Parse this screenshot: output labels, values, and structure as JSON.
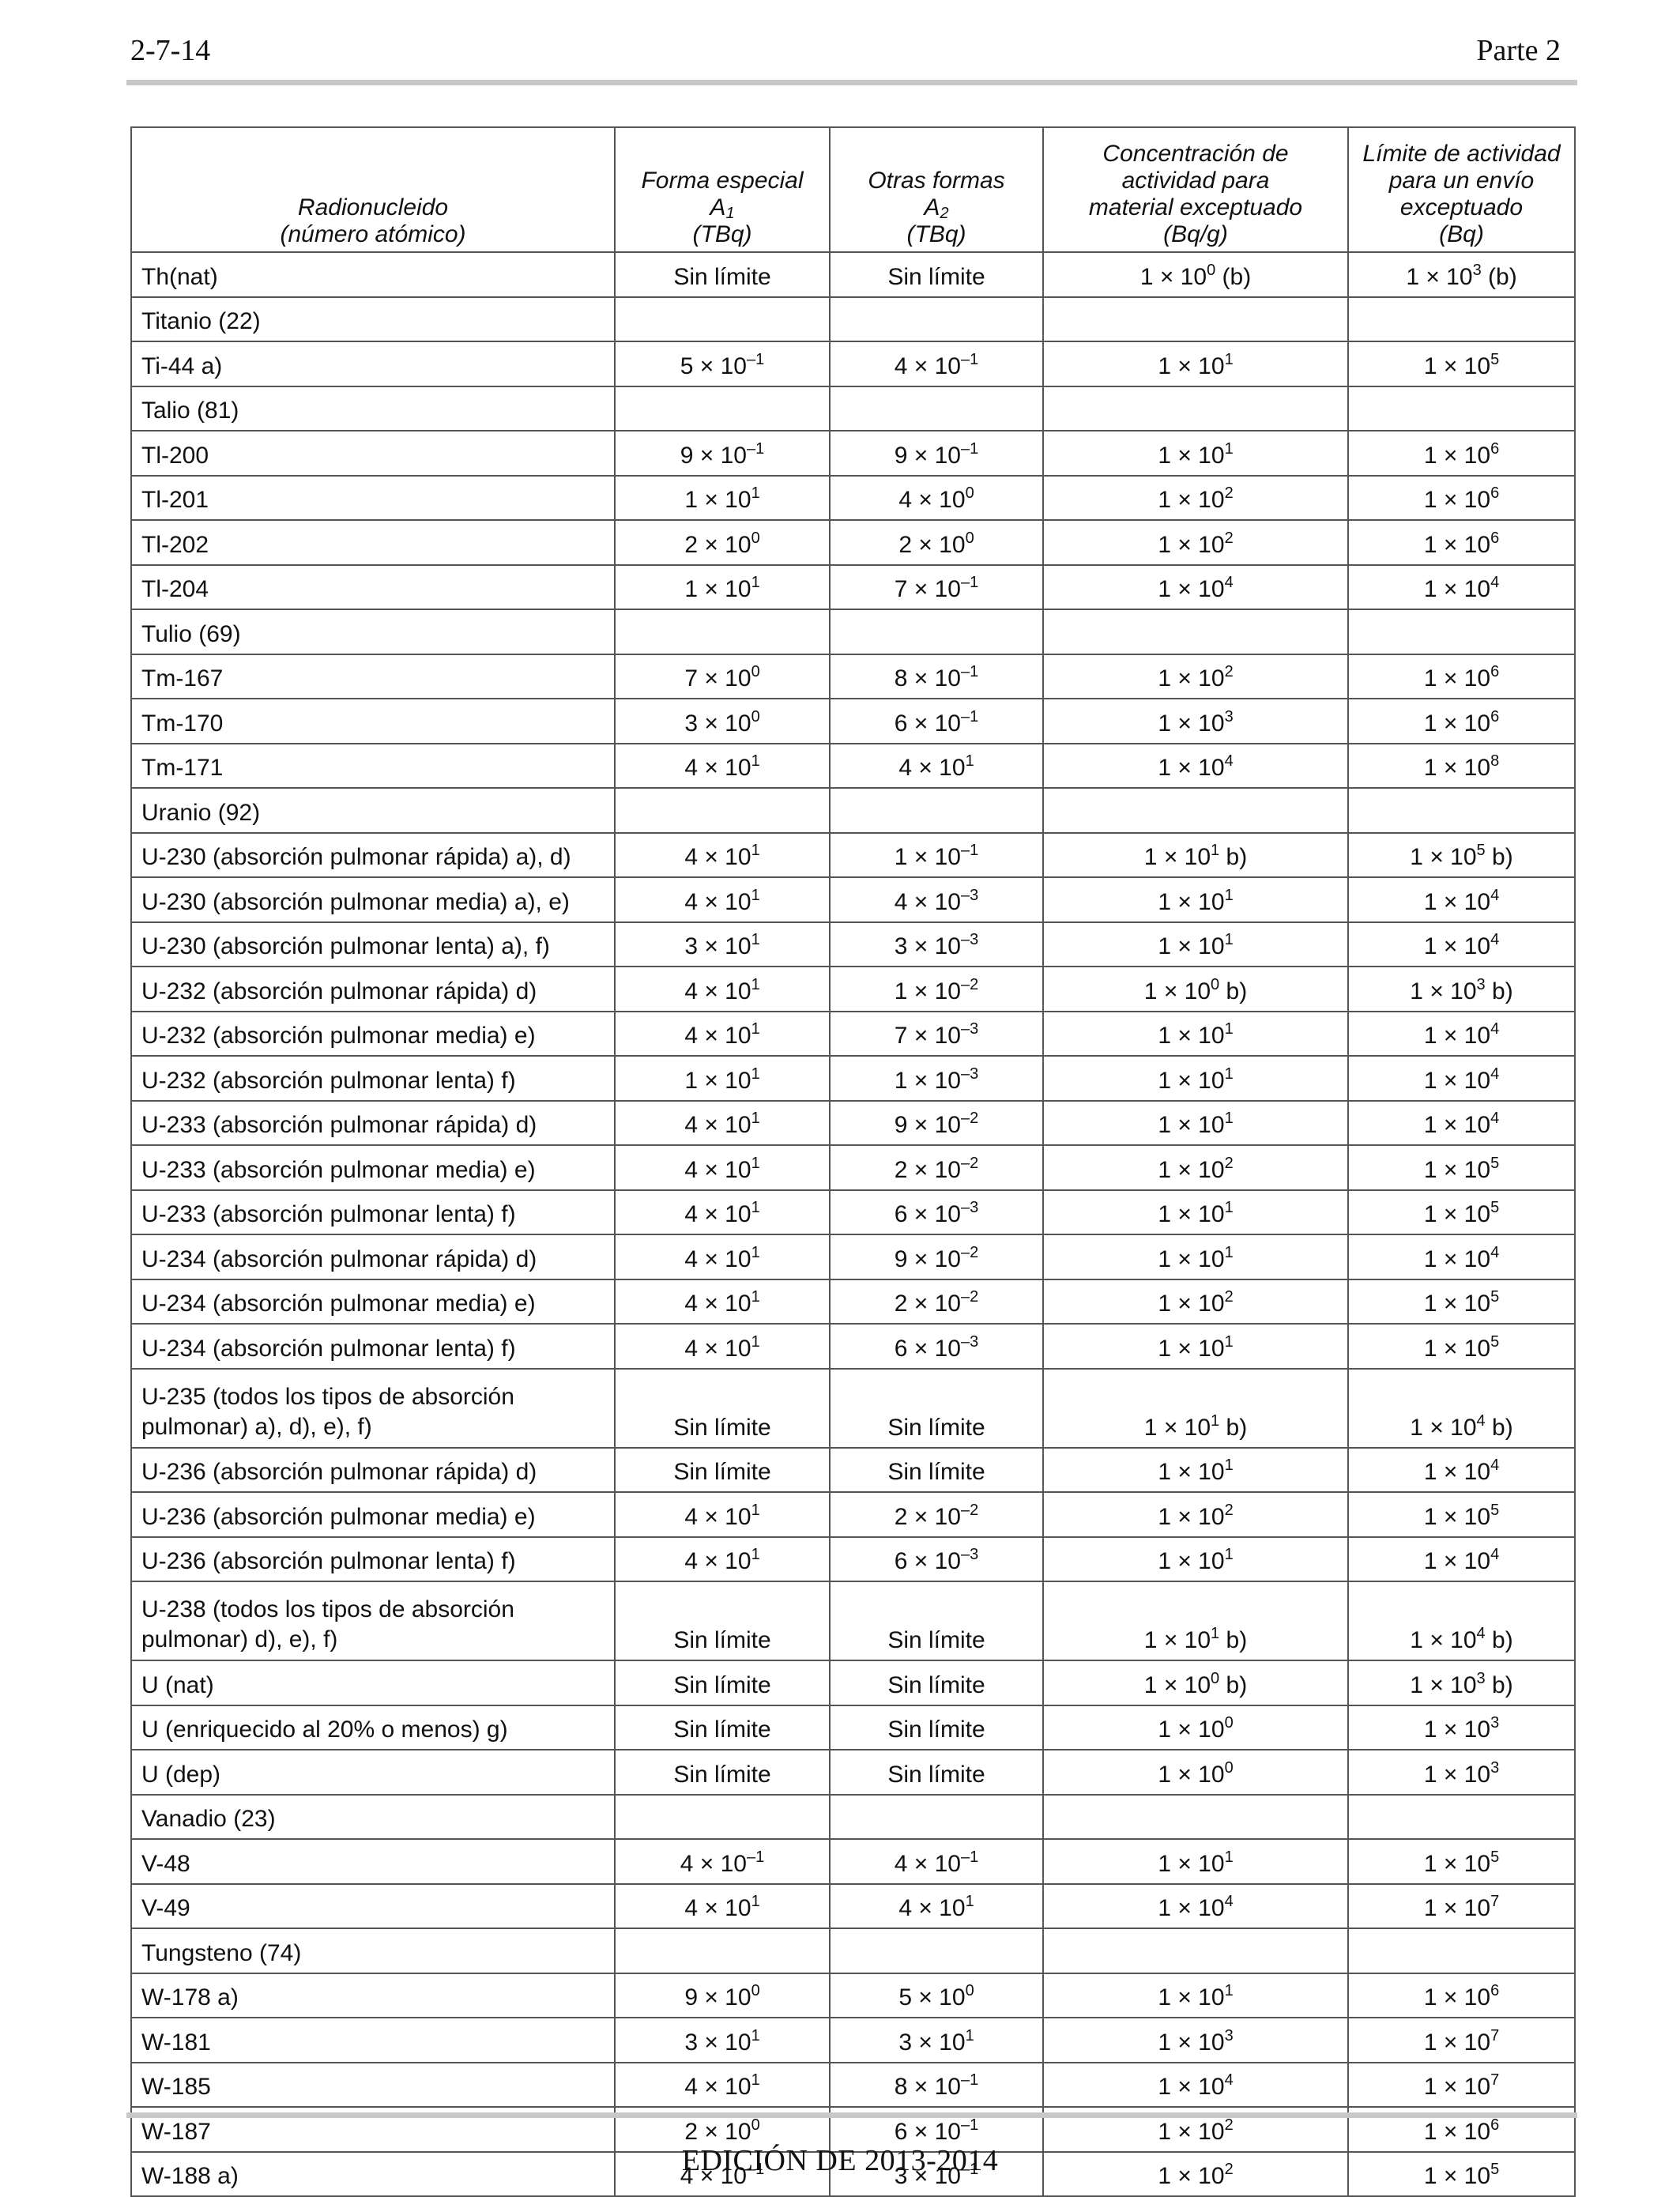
{
  "header": {
    "left": "2-7-14",
    "right": "Parte 2"
  },
  "footer": "EDICIÓN DE 2013-2014",
  "table": {
    "columns": [
      {
        "lines": [
          "Radionucleido",
          "(número atómico)"
        ]
      },
      {
        "lines": [
          "Forma especial",
          "A",
          "(TBq)"
        ],
        "subscript": "1"
      },
      {
        "lines": [
          "Otras formas",
          "A",
          "(TBq)"
        ],
        "subscript": "2"
      },
      {
        "lines": [
          "Concentración de",
          "actividad para",
          "material exceptuado",
          "(Bq/g)"
        ]
      },
      {
        "lines": [
          "Límite de actividad",
          "para un envío",
          "exceptuado",
          "(Bq)"
        ]
      }
    ],
    "rows": [
      {
        "name": "Th(nat)",
        "cells": [
          [
            "Sin límite",
            "",
            ""
          ],
          [
            "Sin límite",
            "",
            ""
          ],
          [
            "1 × 10",
            "0",
            " (b)"
          ],
          [
            "1 × 10",
            "3",
            " (b)"
          ]
        ]
      },
      {
        "name": "Titanio (22)",
        "group": true
      },
      {
        "name": "Ti-44 a)",
        "cells": [
          [
            "5 × 10",
            "–1",
            ""
          ],
          [
            "4 × 10",
            "–1",
            ""
          ],
          [
            "1 × 10",
            "1",
            ""
          ],
          [
            "1 × 10",
            "5",
            ""
          ]
        ]
      },
      {
        "name": "Talio (81)",
        "group": true
      },
      {
        "name": "Tl-200",
        "cells": [
          [
            "9 × 10",
            "–1",
            ""
          ],
          [
            "9 × 10",
            "–1",
            ""
          ],
          [
            "1 × 10",
            "1",
            ""
          ],
          [
            "1 × 10",
            "6",
            ""
          ]
        ]
      },
      {
        "name": "Tl-201",
        "cells": [
          [
            "1 × 10",
            "1",
            ""
          ],
          [
            "4 × 10",
            "0",
            ""
          ],
          [
            "1 × 10",
            "2",
            ""
          ],
          [
            "1 × 10",
            "6",
            ""
          ]
        ]
      },
      {
        "name": "Tl-202",
        "cells": [
          [
            "2 × 10",
            "0",
            ""
          ],
          [
            "2 × 10",
            "0",
            ""
          ],
          [
            "1 × 10",
            "2",
            ""
          ],
          [
            "1 × 10",
            "6",
            ""
          ]
        ]
      },
      {
        "name": "Tl-204",
        "cells": [
          [
            "1 × 10",
            "1",
            ""
          ],
          [
            "7 × 10",
            "–1",
            ""
          ],
          [
            "1 × 10",
            "4",
            ""
          ],
          [
            "1 × 10",
            "4",
            ""
          ]
        ]
      },
      {
        "name": "Tulio (69)",
        "group": true
      },
      {
        "name": "Tm-167",
        "cells": [
          [
            "7 × 10",
            "0",
            ""
          ],
          [
            "8 × 10",
            "–1",
            ""
          ],
          [
            "1 × 10",
            "2",
            ""
          ],
          [
            "1 × 10",
            "6",
            ""
          ]
        ]
      },
      {
        "name": "Tm-170",
        "cells": [
          [
            "3 × 10",
            "0",
            ""
          ],
          [
            "6 × 10",
            "–1",
            ""
          ],
          [
            "1 × 10",
            "3",
            ""
          ],
          [
            "1 × 10",
            "6",
            ""
          ]
        ]
      },
      {
        "name": "Tm-171",
        "cells": [
          [
            "4 × 10",
            "1",
            ""
          ],
          [
            "4 × 10",
            "1",
            ""
          ],
          [
            "1 × 10",
            "4",
            ""
          ],
          [
            "1 × 10",
            "8",
            ""
          ]
        ]
      },
      {
        "name": "Uranio (92)",
        "group": true
      },
      {
        "name": "U-230 (absorción pulmonar rápida) a), d)",
        "cells": [
          [
            "4 × 10",
            "1",
            ""
          ],
          [
            "1 × 10",
            "–1",
            ""
          ],
          [
            "1 × 10",
            "1",
            " b)"
          ],
          [
            "1 × 10",
            "5",
            " b)"
          ]
        ]
      },
      {
        "name": "U-230 (absorción pulmonar media) a), e)",
        "cells": [
          [
            "4 × 10",
            "1",
            ""
          ],
          [
            "4 × 10",
            "–3",
            ""
          ],
          [
            "1 × 10",
            "1",
            ""
          ],
          [
            "1 × 10",
            "4",
            ""
          ]
        ]
      },
      {
        "name": "U-230 (absorción pulmonar lenta) a), f)",
        "cells": [
          [
            "3 × 10",
            "1",
            ""
          ],
          [
            "3 × 10",
            "–3",
            ""
          ],
          [
            "1 × 10",
            "1",
            ""
          ],
          [
            "1 × 10",
            "4",
            ""
          ]
        ]
      },
      {
        "name": "U-232 (absorción pulmonar rápida) d)",
        "cells": [
          [
            "4 × 10",
            "1",
            ""
          ],
          [
            "1 × 10",
            "–2",
            ""
          ],
          [
            "1 × 10",
            "0",
            " b)"
          ],
          [
            "1 × 10",
            "3",
            " b)"
          ]
        ]
      },
      {
        "name": "U-232 (absorción pulmonar media) e)",
        "cells": [
          [
            "4 × 10",
            "1",
            ""
          ],
          [
            "7 × 10",
            "–3",
            ""
          ],
          [
            "1 × 10",
            "1",
            ""
          ],
          [
            "1 × 10",
            "4",
            ""
          ]
        ]
      },
      {
        "name": "U-232 (absorción pulmonar lenta) f)",
        "cells": [
          [
            "1 × 10",
            "1",
            ""
          ],
          [
            "1 × 10",
            "–3",
            ""
          ],
          [
            "1 × 10",
            "1",
            ""
          ],
          [
            "1 × 10",
            "4",
            ""
          ]
        ]
      },
      {
        "name": "U-233 (absorción pulmonar rápida) d)",
        "cells": [
          [
            "4 × 10",
            "1",
            ""
          ],
          [
            "9 × 10",
            "–2",
            ""
          ],
          [
            "1 × 10",
            "1",
            ""
          ],
          [
            "1 × 10",
            "4",
            ""
          ]
        ]
      },
      {
        "name": "U-233 (absorción pulmonar media) e)",
        "cells": [
          [
            "4 × 10",
            "1",
            ""
          ],
          [
            "2 × 10",
            "–2",
            ""
          ],
          [
            "1 × 10",
            "2",
            ""
          ],
          [
            "1 × 10",
            "5",
            ""
          ]
        ]
      },
      {
        "name": "U-233 (absorción pulmonar lenta) f)",
        "cells": [
          [
            "4 × 10",
            "1",
            ""
          ],
          [
            "6 × 10",
            "–3",
            ""
          ],
          [
            "1 × 10",
            "1",
            ""
          ],
          [
            "1 × 10",
            "5",
            ""
          ]
        ]
      },
      {
        "name": "U-234 (absorción pulmonar rápida) d)",
        "cells": [
          [
            "4 × 10",
            "1",
            ""
          ],
          [
            "9 × 10",
            "–2",
            ""
          ],
          [
            "1 × 10",
            "1",
            ""
          ],
          [
            "1 × 10",
            "4",
            ""
          ]
        ]
      },
      {
        "name": "U-234 (absorción pulmonar media) e)",
        "cells": [
          [
            "4 × 10",
            "1",
            ""
          ],
          [
            "2 × 10",
            "–2",
            ""
          ],
          [
            "1 × 10",
            "2",
            ""
          ],
          [
            "1 × 10",
            "5",
            ""
          ]
        ]
      },
      {
        "name": "U-234 (absorción pulmonar lenta) f)",
        "cells": [
          [
            "4 × 10",
            "1",
            ""
          ],
          [
            "6 × 10",
            "–3",
            ""
          ],
          [
            "1 × 10",
            "1",
            ""
          ],
          [
            "1 × 10",
            "5",
            ""
          ]
        ]
      },
      {
        "name": "U-235 (todos los tipos de absorción pulmonar) a), d), e), f)",
        "nameLines": [
          "U-235 (todos los tipos de absorción",
          "pulmonar) a), d), e), f)"
        ],
        "cells": [
          [
            "Sin límite",
            "",
            ""
          ],
          [
            "Sin límite",
            "",
            ""
          ],
          [
            "1 × 10",
            "1",
            " b)"
          ],
          [
            "1 × 10",
            "4",
            " b)"
          ]
        ]
      },
      {
        "name": "U-236 (absorción pulmonar rápida) d)",
        "cells": [
          [
            "Sin límite",
            "",
            ""
          ],
          [
            "Sin límite",
            "",
            ""
          ],
          [
            "1 × 10",
            "1",
            ""
          ],
          [
            "1 × 10",
            "4",
            ""
          ]
        ]
      },
      {
        "name": "U-236 (absorción pulmonar media) e)",
        "cells": [
          [
            "4 × 10",
            "1",
            ""
          ],
          [
            "2 × 10",
            "–2",
            ""
          ],
          [
            "1 × 10",
            "2",
            ""
          ],
          [
            "1 × 10",
            "5",
            ""
          ]
        ]
      },
      {
        "name": "U-236 (absorción pulmonar lenta) f)",
        "cells": [
          [
            "4 × 10",
            "1",
            ""
          ],
          [
            "6 × 10",
            "–3",
            ""
          ],
          [
            "1 × 10",
            "1",
            ""
          ],
          [
            "1 × 10",
            "4",
            ""
          ]
        ]
      },
      {
        "name": "U-238 (todos los tipos de absorción pulmonar) d), e), f)",
        "nameLines": [
          "U-238 (todos los tipos de absorción",
          "pulmonar) d), e), f)"
        ],
        "cells": [
          [
            "Sin límite",
            "",
            ""
          ],
          [
            "Sin límite",
            "",
            ""
          ],
          [
            "1 × 10",
            "1",
            " b)"
          ],
          [
            "1 × 10",
            "4",
            " b)"
          ]
        ]
      },
      {
        "name": "U (nat)",
        "cells": [
          [
            "Sin límite",
            "",
            ""
          ],
          [
            "Sin límite",
            "",
            ""
          ],
          [
            "1 × 10",
            "0",
            "  b)"
          ],
          [
            "1 × 10",
            "3",
            " b)"
          ]
        ]
      },
      {
        "name": "U (enriquecido al 20% o menos) g)",
        "cells": [
          [
            "Sin límite",
            "",
            ""
          ],
          [
            "Sin límite",
            "",
            ""
          ],
          [
            "1 × 10",
            "0",
            ""
          ],
          [
            "1 × 10",
            "3",
            ""
          ]
        ]
      },
      {
        "name": "U (dep)",
        "cells": [
          [
            "Sin límite",
            "",
            ""
          ],
          [
            "Sin límite",
            "",
            ""
          ],
          [
            "1 × 10",
            "0",
            ""
          ],
          [
            "1 × 10",
            "3",
            ""
          ]
        ]
      },
      {
        "name": "Vanadio (23)",
        "group": true
      },
      {
        "name": "V-48",
        "cells": [
          [
            "4 × 10",
            "–1",
            ""
          ],
          [
            "4 × 10",
            "–1",
            ""
          ],
          [
            "1 × 10",
            "1",
            ""
          ],
          [
            "1 × 10",
            "5",
            ""
          ]
        ]
      },
      {
        "name": "V-49",
        "cells": [
          [
            "4 × 10",
            "1",
            ""
          ],
          [
            "4 × 10",
            "1",
            ""
          ],
          [
            "1 × 10",
            "4",
            ""
          ],
          [
            "1 × 10",
            "7",
            ""
          ]
        ]
      },
      {
        "name": "Tungsteno (74)",
        "group": true
      },
      {
        "name": "W-178 a)",
        "cells": [
          [
            "9 × 10",
            "0",
            ""
          ],
          [
            "5 × 10",
            "0",
            ""
          ],
          [
            "1 × 10",
            "1",
            ""
          ],
          [
            "1 × 10",
            "6",
            ""
          ]
        ]
      },
      {
        "name": "W-181",
        "cells": [
          [
            "3 × 10",
            "1",
            ""
          ],
          [
            "3 × 10",
            "1",
            ""
          ],
          [
            "1 × 10",
            "3",
            ""
          ],
          [
            "1 × 10",
            "7",
            ""
          ]
        ]
      },
      {
        "name": "W-185",
        "cells": [
          [
            "4 × 10",
            "1",
            ""
          ],
          [
            "8 × 10",
            "–1",
            ""
          ],
          [
            "1 × 10",
            "4",
            ""
          ],
          [
            "1 × 10",
            "7",
            ""
          ]
        ]
      },
      {
        "name": "W-187",
        "cells": [
          [
            "2 × 10",
            "0",
            ""
          ],
          [
            "6 × 10",
            "–1",
            ""
          ],
          [
            "1 × 10",
            "2",
            ""
          ],
          [
            "1 × 10",
            "6",
            ""
          ]
        ]
      },
      {
        "name": "W-188 a)",
        "cells": [
          [
            "4 × 10",
            "–1",
            ""
          ],
          [
            "3 × 10",
            "–1",
            ""
          ],
          [
            "1 × 10",
            "2",
            ""
          ],
          [
            "1 × 10",
            "5",
            ""
          ]
        ]
      }
    ]
  }
}
